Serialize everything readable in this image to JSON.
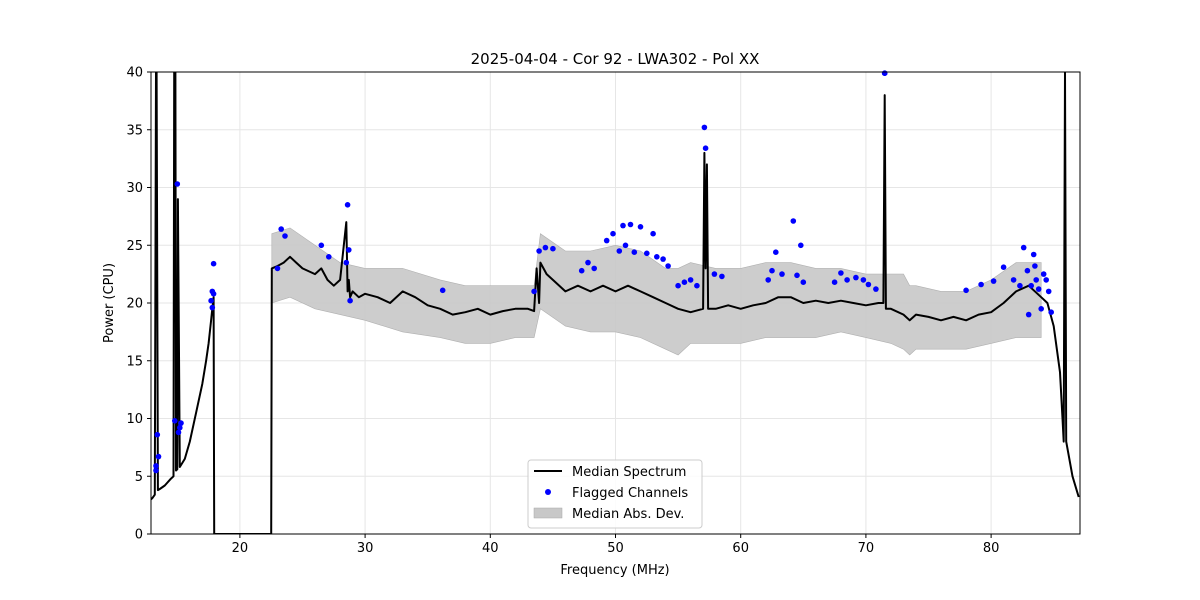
{
  "chart_data": {
    "type": "line",
    "title": "2025-04-04 - Cor 92 - LWA302 - Pol XX",
    "xlabel": "Frequency (MHz)",
    "ylabel": "Power (CPU)",
    "xlim": [
      12.9,
      87.1
    ],
    "ylim": [
      0,
      40
    ],
    "x_ticks": [
      "20",
      "30",
      "40",
      "50",
      "60",
      "70",
      "80"
    ],
    "y_ticks": [
      "0",
      "5",
      "10",
      "15",
      "20",
      "25",
      "30",
      "35",
      "40"
    ],
    "grid": true,
    "legend_position": "bottom-center",
    "legend": {
      "median": "Median Spectrum",
      "flagged": "Flagged Channels",
      "mad": "Median Abs. Dev."
    },
    "colors": {
      "median": "#000000",
      "flagged": "#0000ff",
      "mad": "#c8c8c8",
      "grid": "#e6e6e6"
    },
    "series": [
      {
        "name": "Median Spectrum",
        "x": [
          12.9,
          13.0,
          13.2,
          13.3,
          13.35,
          13.45,
          13.6,
          14.0,
          14.5,
          14.7,
          14.75,
          14.85,
          14.9,
          15.0,
          15.05,
          15.2,
          15.6,
          16.0,
          16.5,
          17.0,
          17.3,
          17.5,
          17.7,
          17.8,
          17.9,
          17.95,
          18.0,
          22.5,
          22.55,
          23.0,
          23.5,
          24.0,
          24.5,
          25.0,
          26.0,
          26.5,
          27.0,
          27.5,
          28.0,
          28.5,
          28.6,
          28.7,
          28.8,
          29.0,
          29.5,
          30.0,
          31.0,
          32.0,
          33.0,
          34.0,
          35.0,
          36.0,
          37.0,
          38.0,
          39.0,
          40.0,
          41.0,
          42.0,
          43.0,
          43.5,
          43.7,
          43.9,
          44.0,
          44.5,
          45.0,
          46.0,
          47.0,
          48.0,
          49.0,
          50.0,
          51.0,
          52.0,
          53.0,
          54.0,
          55.0,
          56.0,
          57.0,
          57.1,
          57.2,
          57.3,
          57.4,
          58.0,
          59.0,
          60.0,
          61.0,
          62.0,
          63.0,
          64.0,
          65.0,
          66.0,
          67.0,
          68.0,
          69.0,
          70.0,
          71.0,
          71.4,
          71.5,
          71.6,
          72.0,
          73.0,
          73.5,
          74.0,
          75.0,
          76.0,
          77.0,
          78.0,
          79.0,
          80.0,
          81.0,
          82.0,
          83.0,
          84.0,
          84.5,
          85.0,
          85.5,
          85.7,
          85.8,
          85.9,
          86.0,
          86.5,
          87.0
        ],
        "y": [
          3.0,
          3.1,
          3.4,
          40.0,
          40.0,
          3.8,
          3.9,
          4.2,
          4.8,
          5.0,
          40.0,
          40.0,
          5.5,
          5.6,
          29.0,
          5.8,
          6.5,
          8.0,
          10.5,
          13.0,
          15.0,
          16.5,
          18.5,
          19.5,
          20.5,
          0.0,
          0.0,
          0.0,
          23.0,
          23.2,
          23.5,
          24.0,
          23.5,
          23.0,
          22.5,
          23.0,
          22.0,
          21.5,
          22.0,
          27.0,
          21.0,
          22.0,
          20.5,
          21.0,
          20.5,
          20.8,
          20.5,
          20.0,
          21.0,
          20.5,
          19.8,
          19.5,
          19.0,
          19.2,
          19.5,
          19.0,
          19.3,
          19.5,
          19.5,
          19.3,
          23.0,
          20.0,
          23.5,
          22.5,
          22.0,
          21.0,
          21.5,
          21.0,
          21.5,
          21.0,
          21.5,
          21.0,
          20.5,
          20.0,
          19.5,
          19.2,
          19.5,
          33.0,
          23.0,
          32.0,
          19.5,
          19.5,
          19.8,
          19.5,
          19.8,
          20.0,
          20.5,
          20.5,
          20.0,
          20.2,
          20.0,
          20.2,
          20.0,
          19.8,
          20.0,
          20.0,
          38.0,
          19.5,
          19.5,
          19.0,
          18.5,
          19.0,
          18.8,
          18.5,
          18.8,
          18.5,
          19.0,
          19.2,
          20.0,
          21.0,
          21.5,
          20.5,
          20.0,
          18.0,
          14.0,
          10.0,
          8.0,
          40.0,
          8.0,
          5.0,
          3.2
        ]
      },
      {
        "name": "Median Abs. Dev.",
        "x": [
          22.55,
          24.0,
          26.0,
          28.0,
          30.0,
          33.0,
          36.0,
          38.0,
          40.0,
          42.0,
          43.5,
          44.0,
          46.0,
          48.0,
          50.0,
          52.0,
          54.0,
          55.0,
          56.0,
          58.0,
          60.0,
          62.0,
          64.0,
          66.0,
          68.0,
          70.0,
          72.0,
          73.0,
          73.5,
          74.0,
          76.0,
          78.0,
          80.0,
          82.0,
          84.0
        ],
        "upper": [
          26.0,
          26.5,
          25.0,
          23.5,
          23.0,
          23.0,
          22.0,
          21.5,
          21.5,
          21.5,
          21.5,
          26.0,
          24.5,
          24.5,
          25.0,
          24.5,
          23.0,
          23.0,
          23.5,
          23.0,
          23.0,
          23.5,
          23.5,
          23.0,
          23.0,
          22.5,
          22.5,
          22.5,
          21.5,
          21.5,
          21.0,
          21.0,
          22.0,
          23.5,
          23.5
        ],
        "lower": [
          20.0,
          20.5,
          19.5,
          19.0,
          18.5,
          17.5,
          17.0,
          16.5,
          16.5,
          17.0,
          17.0,
          19.5,
          18.0,
          17.5,
          17.5,
          17.0,
          16.0,
          15.5,
          16.5,
          16.5,
          16.5,
          17.0,
          17.0,
          17.0,
          17.5,
          17.0,
          16.5,
          16.0,
          15.5,
          16.0,
          16.0,
          16.0,
          16.5,
          17.0,
          17.0
        ]
      },
      {
        "name": "Flagged Channels",
        "x": [
          13.3,
          13.4,
          13.5,
          13.3,
          14.8,
          15.0,
          15.1,
          15.2,
          15.3,
          17.7,
          17.8,
          17.9,
          17.8,
          17.9,
          23.0,
          23.3,
          23.6,
          26.5,
          27.1,
          28.5,
          28.6,
          28.7,
          28.8,
          36.2,
          43.5,
          43.9,
          44.4,
          45.0,
          47.3,
          47.8,
          48.3,
          49.3,
          49.8,
          50.3,
          50.6,
          50.8,
          51.2,
          51.5,
          52.0,
          52.5,
          53.0,
          53.3,
          53.8,
          54.2,
          55.0,
          55.5,
          56.0,
          56.5,
          57.1,
          57.2,
          57.9,
          58.5,
          62.2,
          62.5,
          62.8,
          63.3,
          64.2,
          64.5,
          64.8,
          65.0,
          67.5,
          68.0,
          68.5,
          69.2,
          69.8,
          70.2,
          70.8,
          71.5,
          78.0,
          79.2,
          80.2,
          81.0,
          81.8,
          82.3,
          82.6,
          82.9,
          83.2,
          83.4,
          83.6,
          83.8,
          84.0,
          84.2,
          84.4,
          84.6,
          84.8,
          83.0,
          83.5,
          71.5
        ],
        "y": [
          5.5,
          8.6,
          6.7,
          5.9,
          9.8,
          30.3,
          8.8,
          9.2,
          9.6,
          20.2,
          21.0,
          23.4,
          19.6,
          20.8,
          23.0,
          26.4,
          25.8,
          25.0,
          24.0,
          23.5,
          28.5,
          24.6,
          20.2,
          21.1,
          21.0,
          24.5,
          24.8,
          24.7,
          22.8,
          23.5,
          23.0,
          25.4,
          26.0,
          24.5,
          26.7,
          25.0,
          26.8,
          24.4,
          26.6,
          24.3,
          26.0,
          24.0,
          23.8,
          23.2,
          21.5,
          21.8,
          22.0,
          21.5,
          35.2,
          33.4,
          22.5,
          22.3,
          22.0,
          22.8,
          24.4,
          22.5,
          27.1,
          22.4,
          25.0,
          21.8,
          21.8,
          22.6,
          22.0,
          22.2,
          22.0,
          21.6,
          21.2,
          39.9,
          21.1,
          21.6,
          21.9,
          23.1,
          22.0,
          21.5,
          24.8,
          22.8,
          21.5,
          24.2,
          22.0,
          21.2,
          19.5,
          22.5,
          22.0,
          21.0,
          19.2,
          19.0,
          23.2,
          39.9
        ]
      }
    ]
  }
}
